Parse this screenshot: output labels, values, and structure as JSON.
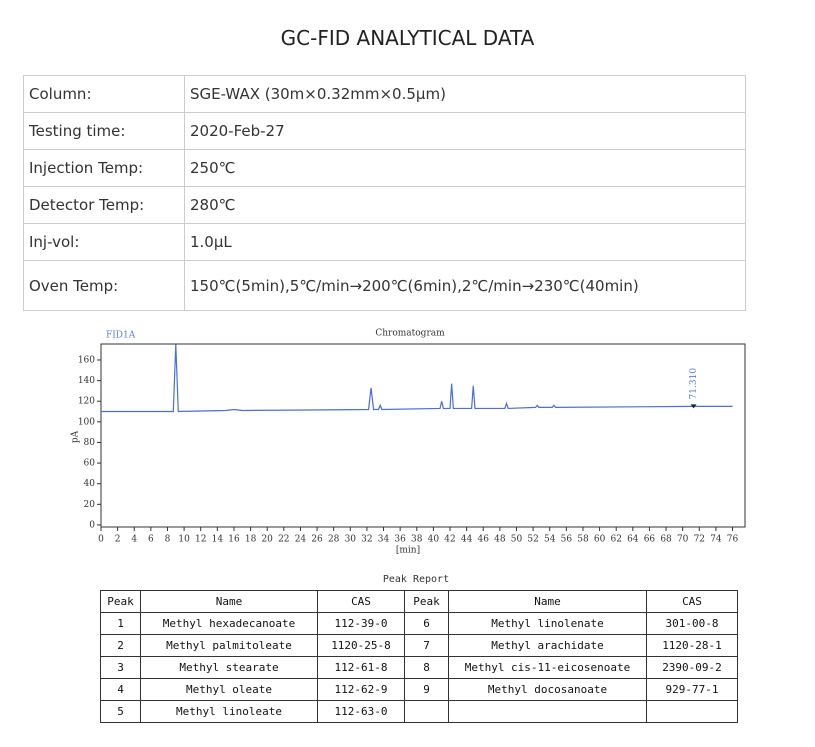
{
  "title": "GC-FID ANALYTICAL DATA",
  "info_table": {
    "rows": [
      [
        "Column:",
        "SGE-WAX (30m×0.32mm×0.5μm)"
      ],
      [
        "Testing time:",
        "2020-Feb-27"
      ],
      [
        "Injection Temp:",
        "250℃"
      ],
      [
        "Detector Temp:",
        "280℃"
      ],
      [
        "Inj-vol:",
        "1.0μL"
      ],
      [
        "Oven Temp:",
        "150℃(5min),5℃/min→200℃(6min),2℃/min→230℃(40min)"
      ]
    ]
  },
  "chart_data": {
    "type": "line",
    "title": "Chromatogram",
    "legend_label": "FID1A",
    "y_label": "pA",
    "x_label": "[min]",
    "color": "#4a6fd8",
    "x": [
      0,
      8.7,
      9.0,
      9.3,
      12,
      15,
      16,
      17,
      25,
      32.2,
      32.5,
      32.8,
      33.4,
      33.6,
      33.8,
      40.8,
      41,
      41.2,
      42,
      42.2,
      42.4,
      44.6,
      44.8,
      45,
      48.6,
      48.8,
      49,
      52.3,
      52.5,
      52.7,
      54.3,
      54.5,
      54.7,
      71.3,
      76
    ],
    "values": [
      110,
      110,
      175,
      110,
      110.5,
      111,
      112,
      111,
      111.5,
      112,
      133,
      112,
      112,
      116,
      112,
      113,
      120,
      113,
      113,
      137,
      113,
      113,
      135,
      113,
      113,
      118,
      113,
      114,
      116,
      114,
      114,
      116,
      114,
      115,
      115
    ],
    "xlim": [
      0,
      77.5
    ],
    "ylim": [
      -2,
      175.5
    ],
    "xticks": [
      0,
      2,
      4,
      6,
      8,
      10,
      12,
      14,
      16,
      18,
      20,
      22,
      24,
      26,
      28,
      30,
      32,
      34,
      36,
      38,
      40,
      42,
      44,
      46,
      48,
      50,
      52,
      54,
      56,
      58,
      60,
      62,
      64,
      66,
      68,
      70,
      72,
      74,
      76
    ],
    "yticks": [
      0,
      20,
      40,
      60,
      80,
      100,
      120,
      140,
      160
    ],
    "annotations": [
      {
        "x": 71.31,
        "label": "71.310"
      }
    ]
  },
  "peak_report": {
    "title": "Peak Report",
    "headers": [
      "Peak",
      "Name",
      "CAS",
      "Peak",
      "Name",
      "CAS"
    ],
    "rows": [
      [
        1,
        "Methyl hexadecanoate",
        "112-39-0",
        6,
        "Methyl linolenate",
        "301-00-8"
      ],
      [
        2,
        "Methyl palmitoleate",
        "1120-25-8",
        7,
        "Methyl arachidate",
        "1120-28-1"
      ],
      [
        3,
        "Methyl stearate",
        "112-61-8",
        8,
        "Methyl cis-11-eicosenoate",
        "2390-09-2"
      ],
      [
        4,
        "Methyl oleate",
        "112-62-9",
        9,
        "Methyl docosanoate",
        "929-77-1"
      ],
      [
        5,
        "Methyl linoleate",
        "112-63-0"
      ]
    ]
  }
}
